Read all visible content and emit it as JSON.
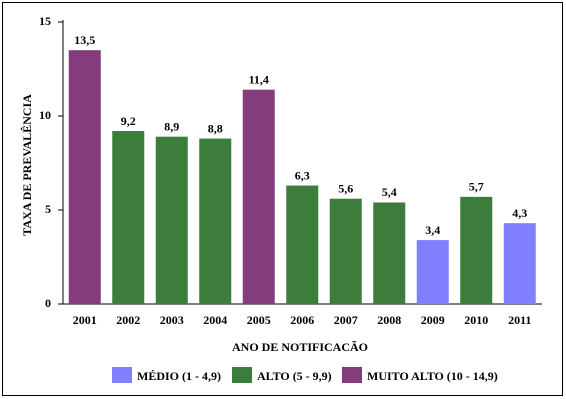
{
  "chart_data": {
    "type": "bar",
    "xlabel": "ANO DE NOTIFICACÃO",
    "ylabel": "TAXA DE PREVALÊNCIA",
    "categories": [
      "2001",
      "2002",
      "2003",
      "2004",
      "2005",
      "2006",
      "2007",
      "2008",
      "2009",
      "2010",
      "2011"
    ],
    "values": [
      13.5,
      9.2,
      8.9,
      8.8,
      11.4,
      6.3,
      5.6,
      5.4,
      3.4,
      5.7,
      4.3
    ],
    "value_labels": [
      "13,5",
      "9,2",
      "8,9",
      "8,8",
      "11,4",
      "6,3",
      "5,6",
      "5,4",
      "3,4",
      "5,7",
      "4,3"
    ],
    "colors": [
      "#843c7c",
      "#3c7d3c",
      "#3c7d3c",
      "#3c7d3c",
      "#843c7c",
      "#3c7d3c",
      "#3c7d3c",
      "#3c7d3c",
      "#8080ff",
      "#3c7d3c",
      "#8080ff"
    ],
    "legend": [
      {
        "name": "MÉDIO (1 - 4,9)",
        "color": "#8080ff"
      },
      {
        "name": "ALTO (5 - 9,9)",
        "color": "#3c7d3c"
      },
      {
        "name": "MUITO ALTO (10 - 14,9)",
        "color": "#843c7c"
      }
    ],
    "ylim": [
      0,
      15
    ],
    "yticks": [
      0,
      5,
      10,
      15
    ],
    "grid": false
  }
}
